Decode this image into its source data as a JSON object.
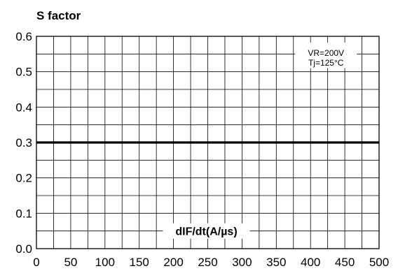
{
  "chart_data": {
    "type": "line",
    "title": "S factor",
    "xlabel": "dIF/dt(A/µs)",
    "ylabel": "",
    "xlim": [
      0,
      500
    ],
    "ylim": [
      0.0,
      0.6
    ],
    "x_ticks": [
      "0",
      "50",
      "100",
      "150",
      "200",
      "250",
      "300",
      "350",
      "400",
      "450",
      "500"
    ],
    "y_ticks": [
      "0.0",
      "0.1",
      "0.2",
      "0.3",
      "0.4",
      "0.5",
      "0.6"
    ],
    "x_tick_values": [
      0,
      50,
      100,
      150,
      200,
      250,
      300,
      350,
      400,
      450,
      500
    ],
    "y_tick_values": [
      0.0,
      0.1,
      0.2,
      0.3,
      0.4,
      0.5,
      0.6
    ],
    "grid": true,
    "annotations": [
      "VR=200V",
      "Tj=125°C"
    ],
    "annotation_placement": "top-right",
    "series": [
      {
        "color": "#000000",
        "x": [
          0,
          500
        ],
        "y": [
          0.3,
          0.3
        ]
      }
    ]
  }
}
